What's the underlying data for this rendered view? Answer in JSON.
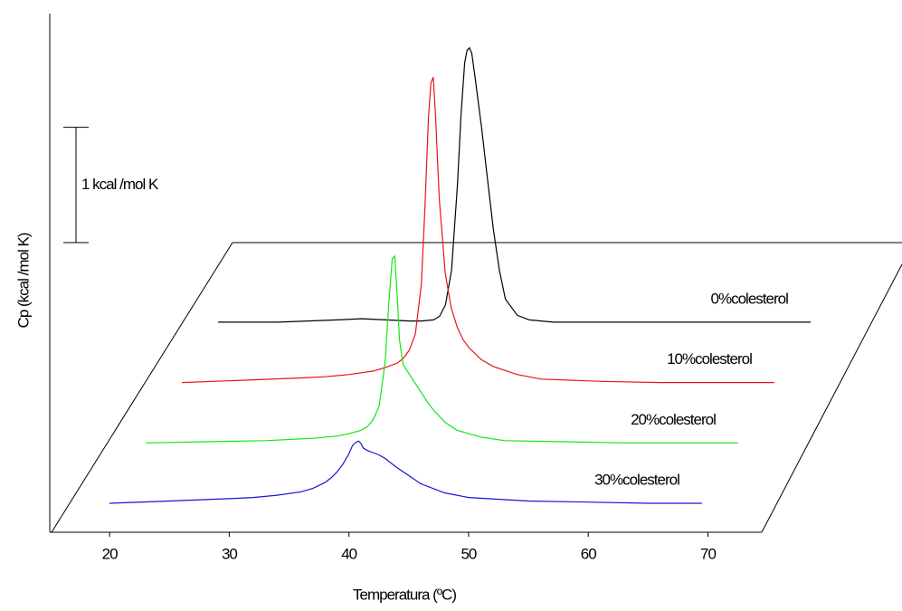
{
  "chart_data": {
    "type": "line",
    "x_label": "Temperatura (ºC)",
    "y_label": "Cp (kcal /mol K)",
    "x": [
      20,
      25,
      30,
      32,
      34,
      36,
      37,
      38,
      38.5,
      39,
      39.5,
      40,
      40.3,
      40.6,
      40.8,
      41,
      41.2,
      41.5,
      42,
      42.5,
      43,
      43.5,
      44,
      45,
      46,
      48,
      50,
      55,
      60,
      65,
      69.5
    ],
    "series": [
      {
        "name": "0%colesterol",
        "color": "#000000",
        "values": [
          0,
          0,
          0.02,
          0.03,
          0.02,
          0.01,
          0.01,
          0.02,
          0.05,
          0.15,
          0.45,
          1.2,
          1.8,
          2.25,
          2.36,
          2.38,
          2.33,
          2.1,
          1.7,
          1.25,
          0.8,
          0.45,
          0.2,
          0.06,
          0.02,
          0,
          0,
          0,
          0,
          0,
          0
        ]
      },
      {
        "name": "10%colesterol",
        "color": "#e8141a",
        "values": [
          0,
          0.02,
          0.04,
          0.05,
          0.07,
          0.1,
          0.13,
          0.17,
          0.21,
          0.28,
          0.42,
          0.85,
          1.5,
          2.3,
          2.6,
          2.65,
          2.3,
          1.6,
          0.95,
          0.65,
          0.48,
          0.37,
          0.3,
          0.2,
          0.14,
          0.07,
          0.03,
          0.01,
          0,
          0,
          0
        ]
      },
      {
        "name": "20%colesterol",
        "color": "#14e614",
        "values": [
          0,
          0.01,
          0.02,
          0.03,
          0.04,
          0.06,
          0.08,
          0.11,
          0.14,
          0.2,
          0.32,
          0.7,
          1.2,
          1.6,
          1.62,
          1.3,
          0.9,
          0.68,
          0.6,
          0.52,
          0.44,
          0.36,
          0.29,
          0.18,
          0.11,
          0.05,
          0.02,
          0.01,
          0,
          0,
          0
        ]
      },
      {
        "name": "30%colesterol",
        "color": "#1414d2",
        "values": [
          0,
          0.02,
          0.04,
          0.05,
          0.07,
          0.1,
          0.13,
          0.18,
          0.22,
          0.27,
          0.34,
          0.43,
          0.5,
          0.53,
          0.54,
          0.52,
          0.48,
          0.46,
          0.44,
          0.42,
          0.39,
          0.35,
          0.31,
          0.24,
          0.17,
          0.09,
          0.05,
          0.02,
          0.01,
          0,
          0
        ]
      }
    ],
    "xlim": [
      15,
      74.5
    ],
    "xticks": [
      20,
      30,
      40,
      50,
      60,
      70
    ],
    "ylim": [
      0,
      4.5
    ],
    "scale_bar": {
      "value": 1,
      "label": "1 kcal /mol K"
    }
  }
}
